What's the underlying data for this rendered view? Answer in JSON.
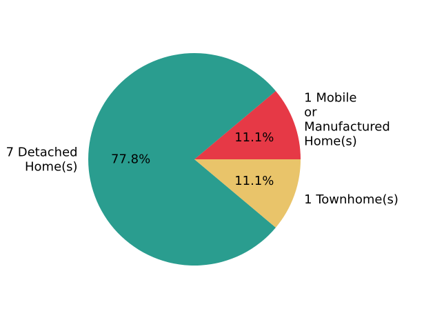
{
  "chart_data": {
    "type": "pie",
    "title": "",
    "slices": [
      {
        "label_lines": [
          "1 Mobile",
          "or",
          "Manufactured",
          "Home(s)"
        ],
        "value": 1,
        "percent_label": "11.1%",
        "color": "#e63946"
      },
      {
        "label_lines": [
          "7 Detached",
          "Home(s)"
        ],
        "value": 7,
        "percent_label": "77.8%",
        "color": "#2a9d8f"
      },
      {
        "label_lines": [
          "1 Townhome(s)"
        ],
        "value": 1,
        "percent_label": "11.1%",
        "color": "#e9c46a"
      }
    ],
    "legend": "none"
  }
}
